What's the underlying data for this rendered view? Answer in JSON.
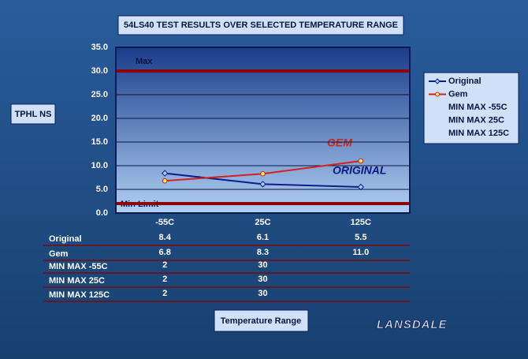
{
  "chart_data": {
    "type": "line",
    "title": "54LS40 TEST RESULTS OVER SELECTED TEMPERATURE RANGE",
    "y_label": "TPHL NS",
    "x_label": "Temperature Range",
    "categories": [
      "-55C",
      "25C",
      "125C"
    ],
    "series": [
      {
        "name": "Original",
        "color": "#0a1e8c",
        "values": [
          8.4,
          6.1,
          5.5
        ]
      },
      {
        "name": "Gem",
        "color": "#d42020",
        "values": [
          6.8,
          8.3,
          11.0
        ],
        "value_labels": [
          "6.8",
          "8.3",
          "11.0"
        ]
      },
      {
        "name": "MIN MAX -55C",
        "color": "#8b0000",
        "values": [
          2,
          30,
          null
        ]
      },
      {
        "name": "MIN MAX 25C",
        "color": "#8b0000",
        "values": [
          2,
          30,
          null
        ]
      },
      {
        "name": "MIN MAX 125C",
        "color": "#8b0000",
        "values": [
          2,
          30,
          null
        ]
      }
    ],
    "ylim": [
      0,
      35
    ],
    "yticks": [
      {
        "value": 0,
        "label": "0.0"
      },
      {
        "value": 5,
        "label": "5.0"
      },
      {
        "value": 10,
        "label": "10.0"
      },
      {
        "value": 15,
        "label": "15.0"
      },
      {
        "value": 20,
        "label": "20.0"
      },
      {
        "value": 25,
        "label": "25.0"
      },
      {
        "value": 30,
        "label": "30.0"
      },
      {
        "value": 35,
        "label": "35.0"
      }
    ],
    "grid": true,
    "annotations": [
      "Max",
      "Min Limit",
      "GEM",
      "ORIGINAL"
    ],
    "logo": "LANSDALE"
  }
}
